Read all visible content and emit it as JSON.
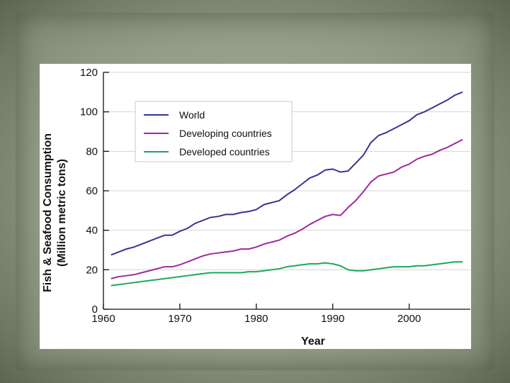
{
  "chart_data": {
    "type": "line",
    "title": "",
    "xlabel": "Year",
    "ylabel_line1": "Fish & Seafood Consumption",
    "ylabel_line2": "(Million metric tons)",
    "xlim": [
      1960,
      2008
    ],
    "ylim": [
      0,
      120
    ],
    "xticks": [
      1960,
      1970,
      1980,
      1990,
      2000
    ],
    "yticks": [
      0,
      20,
      40,
      60,
      80,
      100,
      120
    ],
    "legend_position": "top-left",
    "x": [
      1961,
      1962,
      1963,
      1964,
      1965,
      1966,
      1967,
      1968,
      1969,
      1970,
      1971,
      1972,
      1973,
      1974,
      1975,
      1976,
      1977,
      1978,
      1979,
      1980,
      1981,
      1982,
      1983,
      1984,
      1985,
      1986,
      1987,
      1988,
      1989,
      1990,
      1991,
      1992,
      1993,
      1994,
      1995,
      1996,
      1997,
      1998,
      1999,
      2000,
      2001,
      2002,
      2003,
      2004,
      2005,
      2006,
      2007
    ],
    "series": [
      {
        "name": "World",
        "color": "#34358f",
        "values": [
          27.5,
          29,
          30.5,
          31.5,
          33,
          34.5,
          36,
          37.5,
          37.5,
          39.5,
          41,
          43.5,
          45,
          46.5,
          47,
          48,
          48,
          49,
          49.5,
          50.5,
          53,
          54,
          55,
          58,
          60.5,
          63.5,
          66.5,
          68,
          70.5,
          71,
          69.5,
          70,
          74,
          78,
          84.5,
          88,
          89.5,
          91.5,
          93.5,
          95.5,
          98.5,
          100,
          102,
          104,
          106,
          108.5,
          110
        ]
      },
      {
        "name": "Developing countries",
        "color": "#a1289f",
        "values": [
          15.5,
          16.5,
          17,
          17.5,
          18.5,
          19.5,
          20.5,
          21.5,
          21.5,
          22.5,
          24,
          25.5,
          27,
          28,
          28.5,
          29,
          29.5,
          30.5,
          30.5,
          31.5,
          33,
          34,
          35,
          37,
          38.5,
          40.5,
          43,
          45,
          47,
          48,
          47.5,
          51.5,
          55,
          59.5,
          64.5,
          67.5,
          68.5,
          69.5,
          72,
          73.5,
          76,
          77.5,
          78.5,
          80.5,
          82,
          84,
          86
        ]
      },
      {
        "name": "Developed countries",
        "color": "#1aa860",
        "values": [
          12,
          12.5,
          13,
          13.5,
          14,
          14.5,
          15,
          15.5,
          16,
          16.5,
          17,
          17.5,
          18,
          18.5,
          18.5,
          18.5,
          18.5,
          18.5,
          19,
          19,
          19.5,
          20,
          20.5,
          21.5,
          22,
          22.5,
          23,
          23,
          23.5,
          23,
          22,
          20,
          19.5,
          19.5,
          20,
          20.5,
          21,
          21.5,
          21.5,
          21.5,
          22,
          22,
          22.5,
          23,
          23.5,
          24,
          24
        ]
      }
    ]
  }
}
